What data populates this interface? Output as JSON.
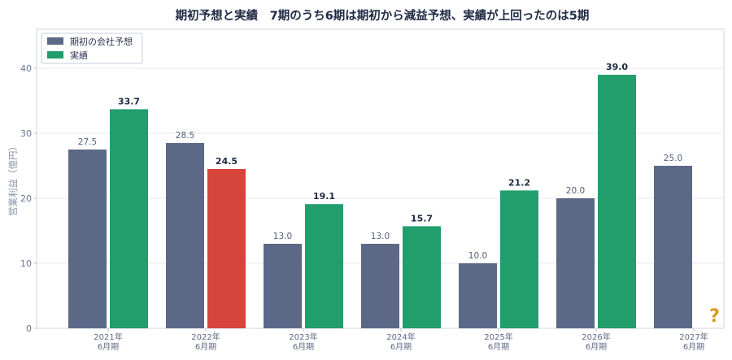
{
  "chart_data": {
    "type": "bar",
    "title": "期初予想と実績　7期のうち6期は期初から減益予想、実績が上回ったのは5期",
    "ylabel": "営業利益（億円）",
    "xlabel": "",
    "ylim": [
      0,
      45
    ],
    "yticks": [
      0,
      10,
      20,
      30,
      40
    ],
    "grid": true,
    "legend_position": "top-left",
    "categories": [
      [
        "2021年",
        "6月期"
      ],
      [
        "2022年",
        "6月期"
      ],
      [
        "2023年",
        "6月期"
      ],
      [
        "2024年",
        "6月期"
      ],
      [
        "2025年",
        "6月期"
      ],
      [
        "2026年",
        "6月期"
      ],
      [
        "2027年",
        "6月期"
      ]
    ],
    "series": [
      {
        "name": "期初の会社予想",
        "values": [
          27.5,
          28.5,
          13.0,
          13.0,
          10.0,
          20.0,
          25.0
        ],
        "color": "#5b6987"
      },
      {
        "name": "実績",
        "values": [
          33.7,
          24.5,
          19.1,
          15.7,
          21.2,
          39.0,
          null
        ],
        "color": "#219e6b",
        "below_forecast_color": "#d6443b"
      }
    ],
    "pending_marker": {
      "text": "?",
      "category_index": 6,
      "color": "#d89a1e"
    }
  }
}
